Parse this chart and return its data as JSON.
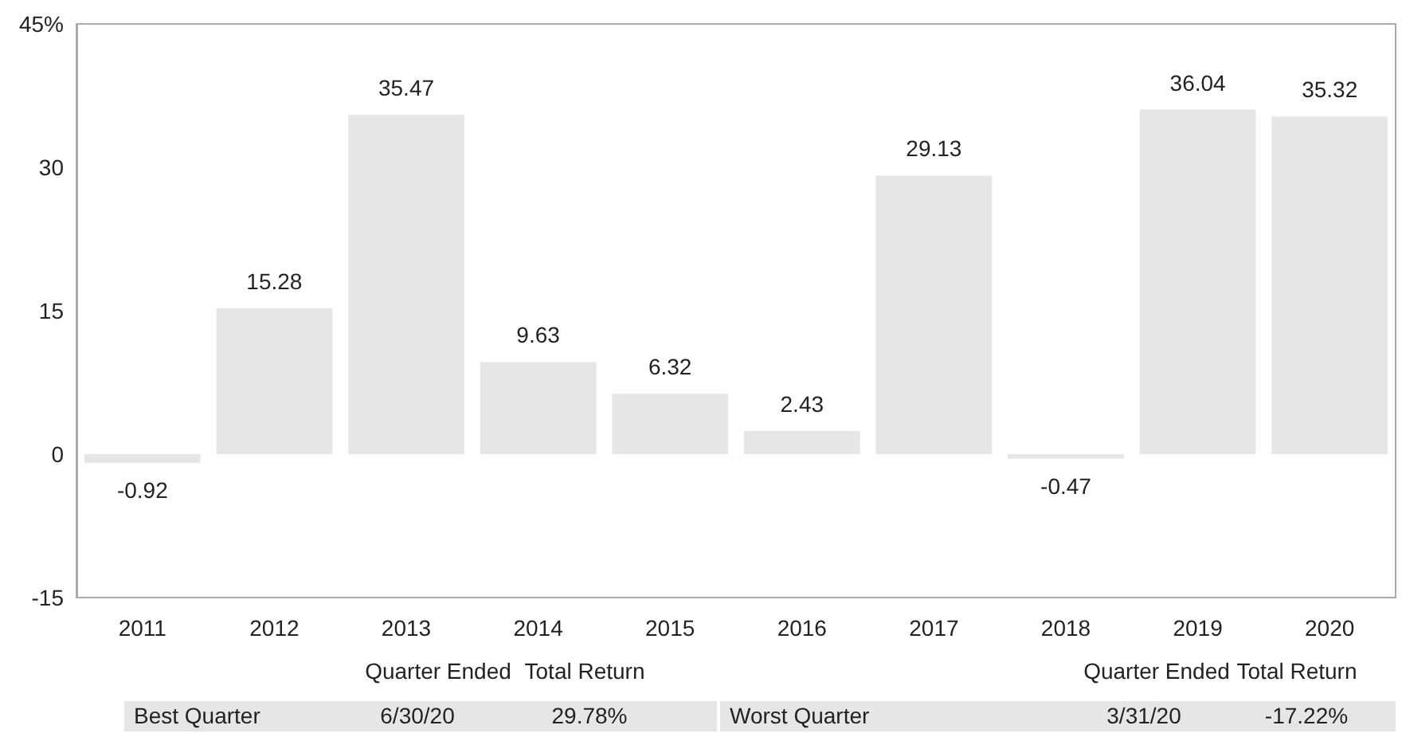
{
  "chart_data": {
    "type": "bar",
    "categories": [
      "2011",
      "2012",
      "2013",
      "2014",
      "2015",
      "2016",
      "2017",
      "2018",
      "2019",
      "2020"
    ],
    "values": [
      -0.92,
      15.28,
      35.47,
      9.63,
      6.32,
      2.43,
      29.13,
      -0.47,
      36.04,
      35.32
    ],
    "color": "#e6e6e6",
    "data_labels": true,
    "ylim": [
      -15,
      45
    ],
    "yticks": [
      -15,
      0,
      15,
      30,
      {
        "value": 45,
        "label": "45%"
      }
    ],
    "grid": false,
    "annotations": [
      "Quarter Ended",
      "Total Return",
      "Best Quarter",
      "6/30/20",
      "29.78%",
      "Quarter Ended",
      "Total Return",
      "Worst Quarter",
      "3/31/20",
      "-17.22%"
    ]
  }
}
